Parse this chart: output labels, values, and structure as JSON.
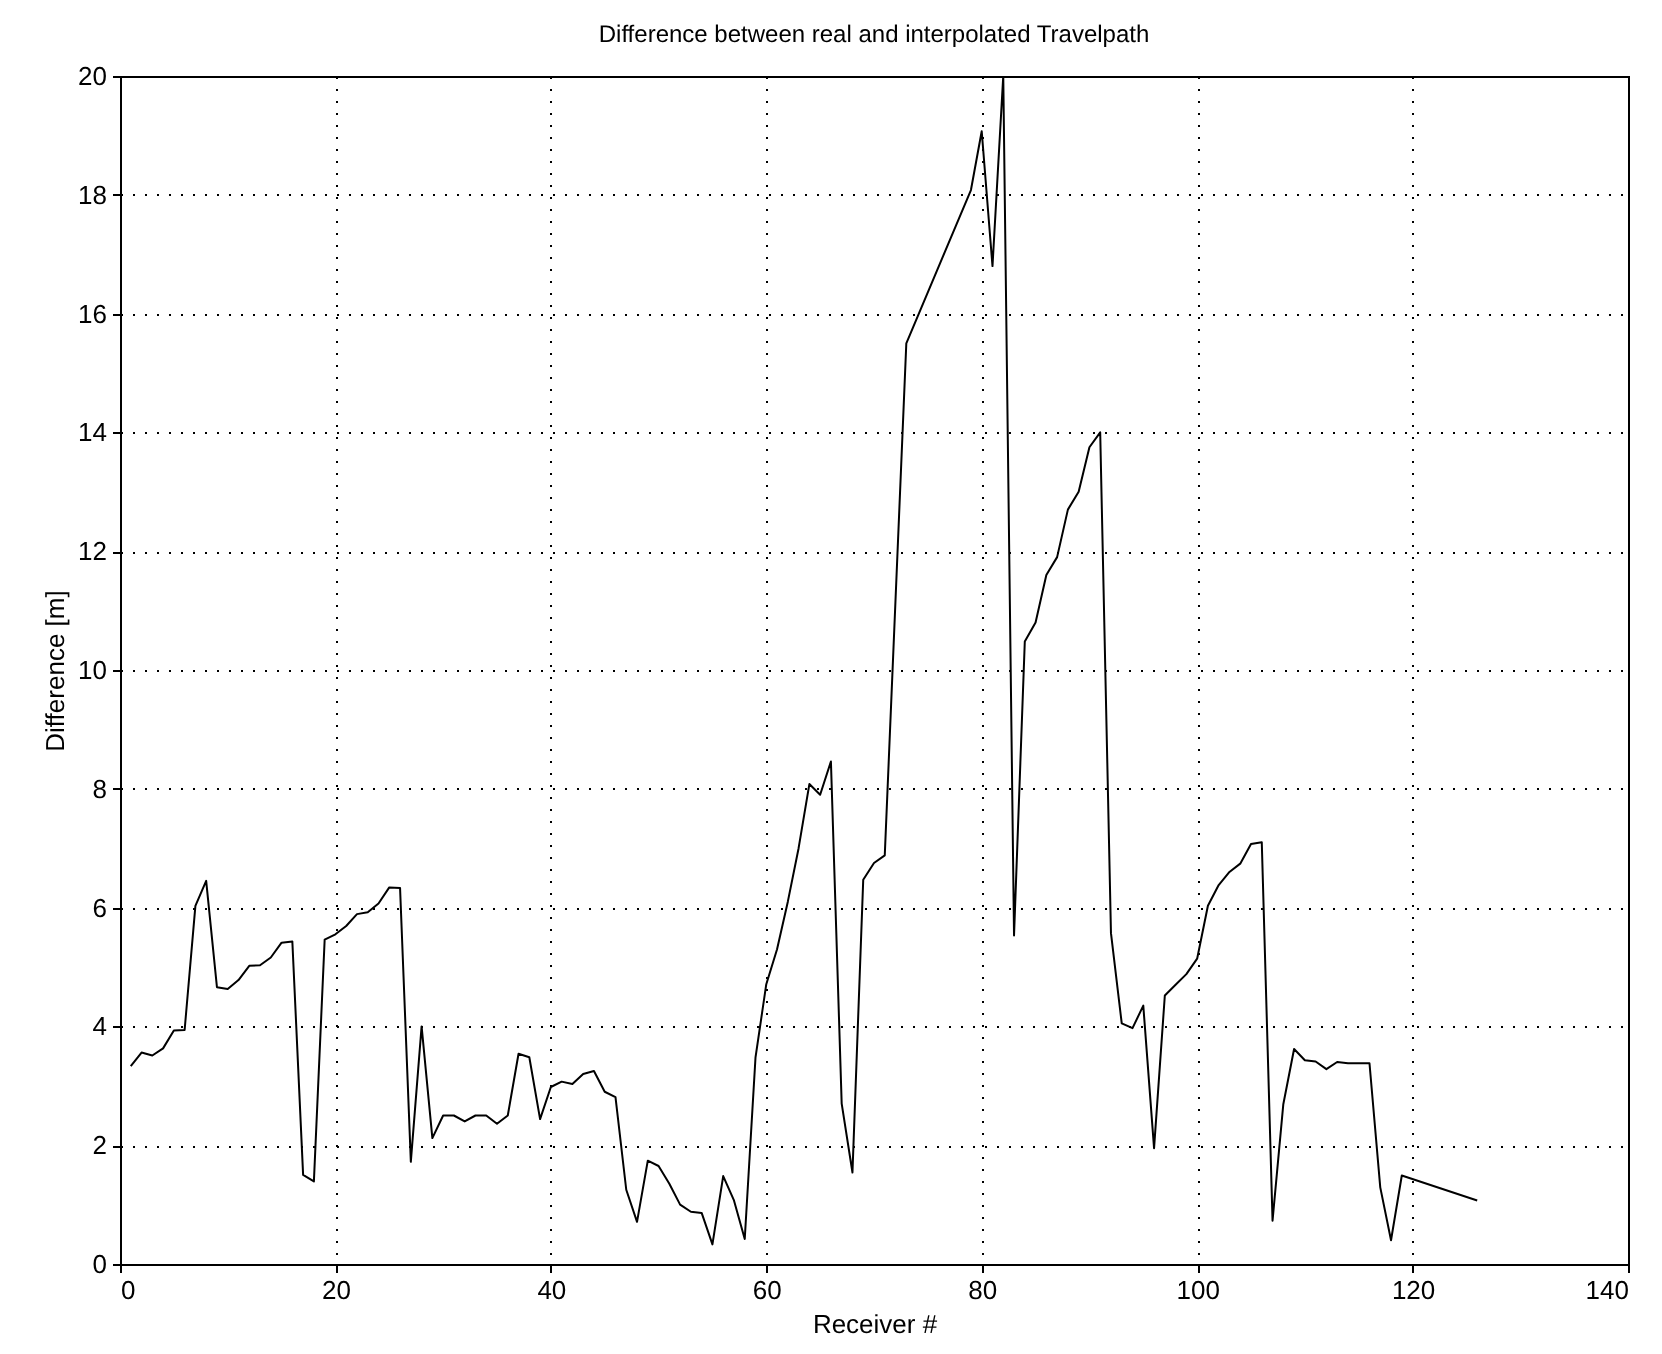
{
  "chart_data": {
    "type": "line",
    "title": "Difference between real and interpolated Travelpath",
    "xlabel": "Receiver #",
    "ylabel": "Difference [m]",
    "x": [
      1,
      2,
      3,
      4,
      5,
      6,
      7,
      8,
      9,
      10,
      11,
      12,
      13,
      14,
      15,
      16,
      17,
      18,
      19,
      20,
      21,
      22,
      23,
      24,
      25,
      26,
      27,
      28,
      29,
      30,
      31,
      32,
      33,
      34,
      35,
      36,
      37,
      38,
      39,
      40,
      41,
      42,
      43,
      44,
      45,
      46,
      47,
      48,
      49,
      50,
      51,
      52,
      53,
      54,
      55,
      56,
      57,
      58,
      59,
      60,
      61,
      62,
      63,
      64,
      65,
      66,
      67,
      68,
      69,
      70,
      71,
      73,
      79,
      80,
      81,
      82,
      83,
      84,
      85,
      86,
      87,
      88,
      89,
      90,
      91,
      92,
      93,
      94,
      95,
      96,
      97,
      98,
      99,
      100,
      101,
      102,
      103,
      104,
      105,
      106,
      107,
      108,
      109,
      110,
      111,
      112,
      113,
      114,
      115,
      116,
      117,
      118,
      119,
      126
    ],
    "series": [
      {
        "color": "#000000",
        "values": [
          3.33,
          3.56,
          3.51,
          3.63,
          3.93,
          3.94,
          6.03,
          6.45,
          4.66,
          4.63,
          4.78,
          5.02,
          5.03,
          5.16,
          5.41,
          5.43,
          1.5,
          1.39,
          5.46,
          5.55,
          5.69,
          5.89,
          5.92,
          6.07,
          6.34,
          6.33,
          1.72,
          4.0,
          2.12,
          2.5,
          2.5,
          2.4,
          2.5,
          2.5,
          2.36,
          2.5,
          3.54,
          3.48,
          2.44,
          2.98,
          3.07,
          3.03,
          3.2,
          3.25,
          2.9,
          2.81,
          1.25,
          0.71,
          1.74,
          1.65,
          1.35,
          1.0,
          0.88,
          0.86,
          0.33,
          1.48,
          1.07,
          0.42,
          3.48,
          4.71,
          5.3,
          6.1,
          7.0,
          8.08,
          7.9,
          8.46,
          2.7,
          1.54,
          6.47,
          6.75,
          6.88,
          15.5,
          18.08,
          19.07,
          16.8,
          20.0,
          5.53,
          10.48,
          10.8,
          11.6,
          11.9,
          12.7,
          13.0,
          13.75,
          14.0,
          5.57,
          4.05,
          3.97,
          4.35,
          1.95,
          4.52,
          4.7,
          4.88,
          5.14,
          6.03,
          6.38,
          6.6,
          6.74,
          7.07,
          7.1,
          0.73,
          2.69,
          3.62,
          3.43,
          3.41,
          3.28,
          3.4,
          3.38,
          3.38,
          3.38,
          1.29,
          0.4,
          1.49,
          1.07
        ]
      }
    ],
    "xlim": [
      0,
      140
    ],
    "xticks": [
      0,
      20,
      40,
      60,
      80,
      100,
      120,
      140
    ],
    "ylim": [
      0,
      20
    ],
    "yticks": [
      0,
      2,
      4,
      6,
      8,
      10,
      12,
      14,
      16,
      18,
      20
    ],
    "grid": true,
    "marker": "none",
    "line_style": "solid"
  }
}
